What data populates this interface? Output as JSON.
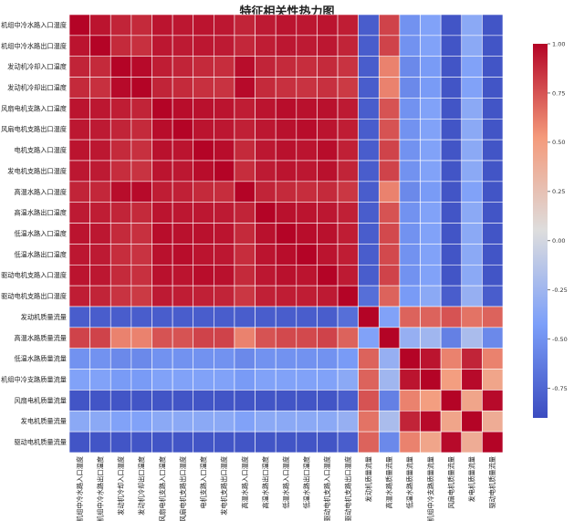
{
  "chart_data": {
    "type": "heatmap",
    "title": "特征相关性热力图",
    "labels": [
      "机组中冷水路入口温度",
      "机组中冷水路出口温度",
      "发动机冷却入口温度",
      "发动机冷却出口温度",
      "风扇电机支路入口温度",
      "风扇电机支路出口温度",
      "电机支路入口温度",
      "发电机支路出口温度",
      "高温水路入口温度",
      "高温水路出口温度",
      "低温水路入口温度",
      "低温水路出口温度",
      "驱动电机支路入口温度",
      "驱动电机支路出口温度",
      "发动机质量流量",
      "高温水路质量流量",
      "低温水路质量流量",
      "机组中冷支路质量流量",
      "风扇电机质量流量",
      "发电机质量流量",
      "驱动电机质量流量"
    ],
    "matrix": [
      [
        1.0,
        0.95,
        0.9,
        0.88,
        0.95,
        0.94,
        0.95,
        0.94,
        0.9,
        0.93,
        0.95,
        0.94,
        0.95,
        0.92,
        -0.8,
        0.8,
        -0.5,
        -0.4,
        -0.85,
        -0.35,
        -0.85
      ],
      [
        0.95,
        1.0,
        0.88,
        0.86,
        0.94,
        0.93,
        0.94,
        0.93,
        0.89,
        0.92,
        0.94,
        0.93,
        0.94,
        0.9,
        -0.8,
        0.8,
        -0.5,
        -0.4,
        -0.85,
        -0.35,
        -0.85
      ],
      [
        0.9,
        0.88,
        1.0,
        0.98,
        0.92,
        0.9,
        0.88,
        0.87,
        0.97,
        0.9,
        0.88,
        0.87,
        0.88,
        0.85,
        -0.8,
        0.6,
        -0.55,
        -0.45,
        -0.85,
        -0.4,
        -0.85
      ],
      [
        0.88,
        0.86,
        0.98,
        1.0,
        0.9,
        0.88,
        0.86,
        0.85,
        0.98,
        0.88,
        0.86,
        0.85,
        0.86,
        0.83,
        -0.8,
        0.6,
        -0.55,
        -0.45,
        -0.85,
        -0.4,
        -0.85
      ],
      [
        0.95,
        0.94,
        0.92,
        0.9,
        1.0,
        0.97,
        0.96,
        0.95,
        0.92,
        0.95,
        0.97,
        0.96,
        0.96,
        0.93,
        -0.8,
        0.75,
        -0.5,
        -0.4,
        -0.85,
        -0.35,
        -0.85
      ],
      [
        0.94,
        0.93,
        0.9,
        0.88,
        0.97,
        1.0,
        0.95,
        0.94,
        0.91,
        0.94,
        0.96,
        0.97,
        0.95,
        0.92,
        -0.8,
        0.75,
        -0.5,
        -0.4,
        -0.85,
        -0.35,
        -0.85
      ],
      [
        0.95,
        0.94,
        0.88,
        0.86,
        0.96,
        0.95,
        1.0,
        0.97,
        0.88,
        0.94,
        0.96,
        0.95,
        0.97,
        0.91,
        -0.8,
        0.8,
        -0.5,
        -0.4,
        -0.85,
        -0.35,
        -0.85
      ],
      [
        0.94,
        0.93,
        0.87,
        0.85,
        0.95,
        0.94,
        0.97,
        1.0,
        0.87,
        0.93,
        0.95,
        0.94,
        0.96,
        0.9,
        -0.8,
        0.8,
        -0.5,
        -0.4,
        -0.85,
        -0.35,
        -0.85
      ],
      [
        0.9,
        0.89,
        0.97,
        0.98,
        0.92,
        0.91,
        0.88,
        0.87,
        1.0,
        0.9,
        0.88,
        0.87,
        0.88,
        0.84,
        -0.8,
        0.6,
        -0.55,
        -0.45,
        -0.85,
        -0.4,
        -0.85
      ],
      [
        0.93,
        0.92,
        0.9,
        0.88,
        0.95,
        0.94,
        0.94,
        0.93,
        0.9,
        1.0,
        0.96,
        0.95,
        0.94,
        0.91,
        -0.8,
        0.75,
        -0.5,
        -0.4,
        -0.85,
        -0.35,
        -0.85
      ],
      [
        0.95,
        0.94,
        0.88,
        0.86,
        0.97,
        0.96,
        0.96,
        0.95,
        0.88,
        0.96,
        1.0,
        0.97,
        0.96,
        0.92,
        -0.8,
        0.78,
        -0.5,
        -0.4,
        -0.85,
        -0.35,
        -0.85
      ],
      [
        0.94,
        0.93,
        0.87,
        0.85,
        0.96,
        0.97,
        0.95,
        0.94,
        0.87,
        0.95,
        0.97,
        1.0,
        0.95,
        0.92,
        -0.8,
        0.78,
        -0.5,
        -0.4,
        -0.85,
        -0.35,
        -0.85
      ],
      [
        0.95,
        0.94,
        0.88,
        0.86,
        0.96,
        0.95,
        0.97,
        0.96,
        0.88,
        0.94,
        0.96,
        0.95,
        1.0,
        0.93,
        -0.8,
        0.8,
        -0.5,
        -0.4,
        -0.85,
        -0.35,
        -0.85
      ],
      [
        0.92,
        0.9,
        0.85,
        0.83,
        0.93,
        0.92,
        0.91,
        0.9,
        0.84,
        0.91,
        0.92,
        0.92,
        0.93,
        1.0,
        -0.7,
        0.7,
        -0.45,
        -0.35,
        -0.8,
        -0.3,
        -0.8
      ],
      [
        -0.8,
        -0.8,
        -0.8,
        -0.8,
        -0.8,
        -0.8,
        -0.8,
        -0.8,
        -0.8,
        -0.8,
        -0.8,
        -0.8,
        -0.8,
        -0.7,
        1.0,
        -0.4,
        0.7,
        0.7,
        0.75,
        0.65,
        0.7
      ],
      [
        0.8,
        0.8,
        0.6,
        0.6,
        0.75,
        0.75,
        0.8,
        0.8,
        0.6,
        0.75,
        0.78,
        0.78,
        0.8,
        0.7,
        -0.4,
        1.0,
        -0.3,
        -0.25,
        -0.6,
        -0.2,
        -0.55
      ],
      [
        -0.5,
        -0.5,
        -0.55,
        -0.55,
        -0.5,
        -0.5,
        -0.5,
        -0.5,
        -0.55,
        -0.5,
        -0.5,
        -0.5,
        -0.5,
        -0.45,
        0.7,
        -0.3,
        1.0,
        0.95,
        0.6,
        0.9,
        0.6
      ],
      [
        -0.4,
        -0.4,
        -0.45,
        -0.45,
        -0.4,
        -0.4,
        -0.4,
        -0.4,
        -0.45,
        -0.4,
        -0.4,
        -0.4,
        -0.4,
        -0.35,
        0.7,
        -0.25,
        0.95,
        1.0,
        0.5,
        0.98,
        0.45
      ],
      [
        -0.85,
        -0.85,
        -0.85,
        -0.85,
        -0.85,
        -0.85,
        -0.85,
        -0.85,
        -0.85,
        -0.85,
        -0.85,
        -0.85,
        -0.85,
        -0.8,
        0.75,
        -0.6,
        0.6,
        0.5,
        1.0,
        0.45,
        0.98
      ],
      [
        -0.35,
        -0.35,
        -0.4,
        -0.4,
        -0.35,
        -0.35,
        -0.35,
        -0.35,
        -0.4,
        -0.35,
        -0.35,
        -0.35,
        -0.35,
        -0.3,
        0.65,
        -0.2,
        0.9,
        0.98,
        0.45,
        1.0,
        0.4
      ],
      [
        -0.85,
        -0.85,
        -0.85,
        -0.85,
        -0.85,
        -0.85,
        -0.85,
        -0.85,
        -0.85,
        -0.85,
        -0.85,
        -0.85,
        -0.85,
        -0.8,
        0.7,
        -0.55,
        0.6,
        0.45,
        0.98,
        0.4,
        1.0
      ]
    ],
    "colorbar": {
      "range": [
        -0.9,
        1.0
      ],
      "ticks": [
        "1.00",
        "0.75",
        "0.50",
        "0.25",
        "0.00",
        "-0.25",
        "-0.50",
        "-0.75"
      ],
      "tick_values": [
        1.0,
        0.75,
        0.5,
        0.25,
        0.0,
        -0.25,
        -0.5,
        -0.75
      ],
      "colormap": "coolwarm"
    },
    "grid": true
  }
}
